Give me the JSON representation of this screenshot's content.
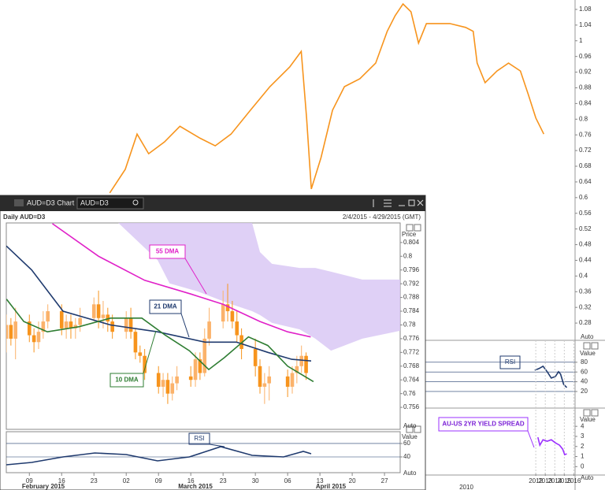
{
  "window": {
    "title": "AUD=D3 Chart",
    "symbol": "AUD=D3"
  },
  "chart_data": [
    {
      "type": "line",
      "xlim": [
        2000.15,
        2016.13
      ],
      "ylim": [
        0.236,
        1.104
      ],
      "yticks": [
        0.28,
        0.32,
        0.36,
        0.4,
        0.44,
        0.48,
        0.52,
        0.56,
        0.6,
        0.64,
        0.68,
        0.72,
        0.76,
        0.8,
        0.84,
        0.88,
        0.92,
        0.96,
        1,
        1.04,
        1.08
      ],
      "scale_button": "Auto",
      "series": [
        {
          "color": "#f7941d",
          "x": [
            2003.2,
            2003.63,
            2003.96,
            2004.28,
            2004.72,
            2005.15,
            2005.7,
            2006.13,
            2006.57,
            2007.11,
            2007.65,
            2008.2,
            2008.52,
            2008.67,
            2008.8,
            2009.07,
            2009.39,
            2009.72,
            2010.15,
            2010.59,
            2010.91,
            2011.13,
            2011.35,
            2011.57,
            2011.78,
            2012.0,
            2012.33,
            2012.65,
            2013.09,
            2013.3,
            2013.41,
            2013.63,
            2013.96,
            2014.28,
            2014.61,
            2014.83,
            2015.04,
            2015.26
          ],
          "values": [
            0.612,
            0.672,
            0.762,
            0.712,
            0.742,
            0.782,
            0.752,
            0.732,
            0.762,
            0.823,
            0.883,
            0.933,
            0.973,
            0.803,
            0.622,
            0.702,
            0.823,
            0.883,
            0.903,
            0.943,
            1.024,
            1.064,
            1.094,
            1.074,
            0.994,
            1.044,
            1.044,
            1.044,
            1.034,
            1.024,
            0.943,
            0.893,
            0.923,
            0.943,
            0.923,
            0.863,
            0.803,
            0.762
          ]
        }
      ]
    },
    {
      "type": "line",
      "annotation": "RSI",
      "ylabel": "Value",
      "xlim": [
        2000.15,
        2016.13
      ],
      "ylim": [
        7,
        104
      ],
      "yticks": [
        80,
        60,
        40,
        20
      ],
      "series": [
        {
          "color": "#1f3a6e",
          "x": [
            2011.89,
            2012.33,
            2012.76,
            2013.2,
            2013.63,
            2014.07,
            2014.39,
            2014.61,
            2014.93,
            2015.26
          ],
          "values": [
            63.8,
            67,
            71.9,
            60.6,
            47.6,
            50.8,
            60.6,
            55.7,
            34.6,
            28.1
          ]
        }
      ]
    },
    {
      "type": "line",
      "annotation": "AU-US 2YR YIELD SPREAD",
      "ylabel": "Value",
      "scale_button": "Auto",
      "xlim": [
        2000.15,
        2016.13
      ],
      "ylim": [
        -0.6,
        5.5
      ],
      "yticks": [
        4,
        3,
        2,
        1,
        0
      ],
      "xticks": [
        2012,
        2013,
        2014,
        2015,
        2016
      ],
      "x_sublabel": "2010",
      "series": [
        {
          "color": "#9b30ff",
          "x": [
            2012.22,
            2012.43,
            2012.76,
            2013.2,
            2013.63,
            2014.07,
            2014.5,
            2014.83,
            2015.04,
            2015.26
          ],
          "values": [
            2.91,
            2.13,
            2.67,
            2.52,
            2.67,
            2.36,
            2.13,
            1.73,
            1.19,
            1.27
          ]
        }
      ]
    },
    {
      "type": "candlestick",
      "title": "Daily AUD=D3",
      "date_range": "2/4/2015 - 4/29/2015 (GMT)",
      "ylabel": "Price",
      "scale_button": "Auto",
      "xlim": [
        35,
        120.4
      ],
      "ylim": [
        0.7496,
        0.8097
      ],
      "yticks": [
        0.756,
        0.76,
        0.764,
        0.768,
        0.772,
        0.776,
        0.78,
        0.784,
        0.788,
        0.792,
        0.796,
        0.8,
        0.804
      ],
      "candles": {
        "color": "#f7941d",
        "up_color": "#fbb26a",
        "x": [
          35,
          36,
          37,
          40,
          41,
          42,
          43,
          44,
          47,
          48,
          49,
          50,
          51,
          54,
          55,
          56,
          57,
          58,
          61,
          62,
          63,
          64,
          65,
          68,
          69,
          70,
          71,
          72,
          75,
          76,
          77,
          78,
          79,
          82,
          83,
          84,
          85,
          86,
          89,
          90,
          91,
          92,
          96,
          97,
          98,
          99,
          100
        ],
        "open": [
          0.776,
          0.78,
          0.776,
          0.781,
          0.777,
          0.775,
          0.778,
          0.781,
          0.784,
          0.779,
          0.781,
          0.779,
          0.78,
          0.782,
          0.786,
          0.782,
          0.783,
          0.781,
          0.778,
          0.782,
          0.778,
          0.772,
          0.771,
          0.766,
          0.762,
          0.764,
          0.76,
          0.763,
          0.765,
          0.764,
          0.77,
          0.766,
          0.776,
          0.781,
          0.786,
          0.784,
          0.781,
          0.777,
          0.773,
          0.768,
          0.762,
          0.763,
          0.765,
          0.762,
          0.766,
          0.768,
          0.771
        ],
        "high": [
          0.783,
          0.782,
          0.785,
          0.783,
          0.779,
          0.781,
          0.784,
          0.786,
          0.786,
          0.783,
          0.783,
          0.782,
          0.785,
          0.788,
          0.79,
          0.787,
          0.785,
          0.783,
          0.784,
          0.785,
          0.779,
          0.774,
          0.773,
          0.768,
          0.766,
          0.766,
          0.765,
          0.768,
          0.768,
          0.772,
          0.772,
          0.779,
          0.785,
          0.79,
          0.792,
          0.787,
          0.784,
          0.779,
          0.776,
          0.77,
          0.766,
          0.768,
          0.767,
          0.768,
          0.771,
          0.774,
          0.772
        ],
        "low": [
          0.772,
          0.774,
          0.77,
          0.775,
          0.772,
          0.773,
          0.776,
          0.779,
          0.777,
          0.776,
          0.776,
          0.776,
          0.778,
          0.781,
          0.779,
          0.779,
          0.778,
          0.776,
          0.776,
          0.776,
          0.77,
          0.769,
          0.764,
          0.76,
          0.759,
          0.757,
          0.758,
          0.761,
          0.762,
          0.762,
          0.764,
          0.765,
          0.774,
          0.779,
          0.781,
          0.779,
          0.775,
          0.77,
          0.765,
          0.76,
          0.757,
          0.758,
          0.759,
          0.76,
          0.763,
          0.766,
          0.764
        ],
        "close": [
          0.78,
          0.776,
          0.781,
          0.777,
          0.775,
          0.778,
          0.781,
          0.784,
          0.779,
          0.781,
          0.779,
          0.78,
          0.782,
          0.786,
          0.782,
          0.783,
          0.781,
          0.778,
          0.782,
          0.778,
          0.772,
          0.771,
          0.766,
          0.762,
          0.764,
          0.76,
          0.763,
          0.765,
          0.764,
          0.77,
          0.766,
          0.776,
          0.781,
          0.786,
          0.784,
          0.781,
          0.777,
          0.773,
          0.768,
          0.762,
          0.763,
          0.765,
          0.762,
          0.766,
          0.768,
          0.771,
          0.766
        ]
      },
      "cloud": {
        "color": "#d9c8f5",
        "x": [
          59.3,
          67.8,
          70.4,
          76.4,
          83.2,
          88.3,
          90,
          92.6,
          98.6,
          102,
          105.4,
          112.2,
          120.4
        ],
        "upper": [
          0.8097,
          0.8097,
          0.8097,
          0.8097,
          0.8097,
          0.8097,
          0.8012,
          0.7978,
          0.7966,
          0.7966,
          0.7955,
          0.7932,
          0.7932
        ],
        "lower": [
          0.8097,
          0.7989,
          0.7921,
          0.7898,
          0.7863,
          0.784,
          0.7829,
          0.7806,
          0.7787,
          0.776,
          0.7725,
          0.776,
          0.7783
        ]
      },
      "series": [
        {
          "name": "55 DMA",
          "color": "#e020c8",
          "x": [
            45,
            55,
            65,
            75,
            82,
            90,
            96,
            101
          ],
          "values": [
            0.8095,
            0.8,
            0.793,
            0.789,
            0.786,
            0.781,
            0.778,
            0.7765
          ]
        },
        {
          "name": "21 DMA",
          "color": "#1f3a6e",
          "x": [
            35.0,
            40.5,
            47.3,
            57.6,
            67.8,
            78.1,
            84.9,
            91.7,
            96.9,
            101.1
          ],
          "values": [
            0.803,
            0.796,
            0.784,
            0.78,
            0.778,
            0.775,
            0.775,
            0.772,
            0.77,
            0.7695
          ]
        },
        {
          "name": "10 DMA",
          "color": "#2e7d32",
          "x": [
            35.05,
            38.8,
            43.9,
            50.8,
            57.6,
            64.4,
            69.5,
            74.7,
            78.9,
            82.3,
            87.5,
            91.7,
            96,
            101.6
          ],
          "values": [
            0.7875,
            0.781,
            0.778,
            0.7795,
            0.782,
            0.782,
            0.777,
            0.7725,
            0.767,
            0.7705,
            0.7765,
            0.774,
            0.768,
            0.7635
          ]
        }
      ]
    },
    {
      "type": "line",
      "annotation": "RSI",
      "ylabel": "Value",
      "scale_button": "Auto",
      "xlim": [
        35,
        120.4
      ],
      "ylim": [
        16.5,
        77.6
      ],
      "yticks": [
        60,
        40
      ],
      "xticks": [
        {
          "value": 40,
          "label": "09"
        },
        {
          "value": 47,
          "label": "16"
        },
        {
          "value": 54,
          "label": "23"
        },
        {
          "value": 61,
          "label": "02"
        },
        {
          "value": 68,
          "label": "09"
        },
        {
          "value": 75,
          "label": "16"
        },
        {
          "value": 82,
          "label": "23"
        },
        {
          "value": 89,
          "label": "30"
        },
        {
          "value": 96,
          "label": "06"
        },
        {
          "value": 103,
          "label": "13"
        },
        {
          "value": 110,
          "label": "20"
        },
        {
          "value": 117,
          "label": "27"
        }
      ],
      "months": [
        "February 2015",
        "March 2015",
        "April 2015"
      ],
      "series": [
        {
          "color": "#1f3a6e",
          "x": [
            35,
            40.5,
            47.3,
            54.2,
            61,
            67.8,
            74.7,
            81.5,
            88.3,
            95.1,
            99.4,
            101.1
          ],
          "values": [
            28.2,
            31.8,
            40,
            45.9,
            43.5,
            34.1,
            40,
            55.3,
            42.4,
            40,
            48.2,
            44.7
          ]
        }
      ]
    }
  ]
}
